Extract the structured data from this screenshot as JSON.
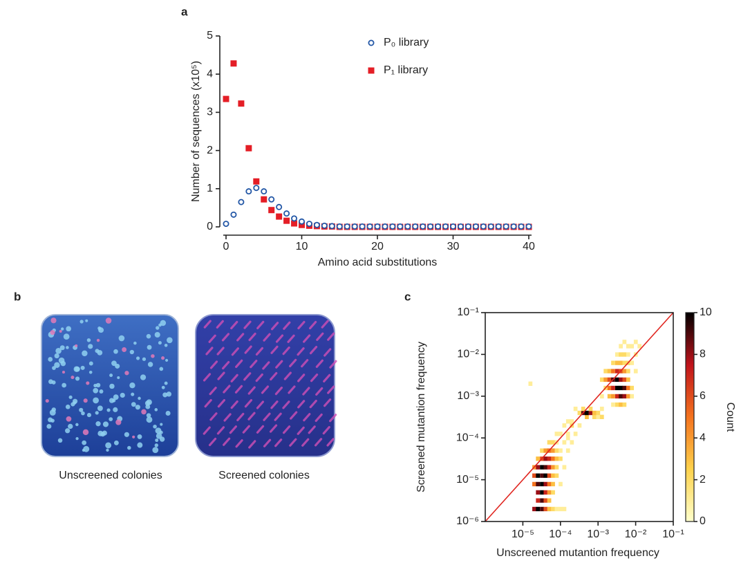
{
  "chart_data": [
    {
      "type": "scatter",
      "panel_label": "a",
      "xlabel": "Amino acid substitutions",
      "ylabel": "Number of sequences (x10⁵)",
      "x": [
        0,
        1,
        2,
        3,
        4,
        5,
        6,
        7,
        8,
        9,
        10,
        11,
        12,
        13,
        14,
        15,
        16,
        17,
        18,
        19,
        20,
        21,
        22,
        23,
        24,
        25,
        26,
        27,
        28,
        29,
        30,
        31,
        32,
        33,
        34,
        35,
        36,
        37,
        38,
        39,
        40
      ],
      "series": [
        {
          "name": "P₀ library",
          "color": "#2357a6",
          "marker": "circle-open",
          "values": [
            0.08,
            0.32,
            0.65,
            0.93,
            1.02,
            0.93,
            0.72,
            0.52,
            0.35,
            0.22,
            0.14,
            0.08,
            0.05,
            0.03,
            0.02,
            0.01,
            0.01,
            0.01,
            0.01,
            0.01,
            0.01,
            0.01,
            0.01,
            0.01,
            0.01,
            0.01,
            0.01,
            0.01,
            0.01,
            0.01,
            0.01,
            0.01,
            0.01,
            0.01,
            0.01,
            0.01,
            0.01,
            0.01,
            0.01,
            0.01,
            0.01
          ]
        },
        {
          "name": "P₁ library",
          "color": "#e41e26",
          "marker": "square",
          "values": [
            3.35,
            4.28,
            3.23,
            2.06,
            1.19,
            0.72,
            0.44,
            0.27,
            0.16,
            0.09,
            0.05,
            0.03,
            0.02,
            0.01,
            0.01,
            0,
            0,
            0,
            0,
            0,
            0,
            0,
            0,
            0,
            0,
            0,
            0,
            0,
            0,
            0,
            0,
            0,
            0,
            0,
            0,
            0,
            0,
            0,
            0,
            0,
            0
          ]
        }
      ],
      "xlim": [
        0,
        40
      ],
      "xticks": [
        0,
        10,
        20,
        30,
        40
      ],
      "ylim": [
        0,
        5
      ],
      "yticks": [
        0,
        1,
        2,
        3,
        4,
        5
      ],
      "legend": "top right"
    },
    {
      "type": "heatmap",
      "panel_label": "c",
      "xlabel": "Unscreened mutantion frequency",
      "ylabel": "Screened mutantion frequency",
      "log_x": true,
      "log_y": true,
      "xlim": [
        1e-06,
        0.1
      ],
      "xticks": [
        {
          "value": 1e-05,
          "label": "10⁻⁵"
        },
        {
          "value": 0.0001,
          "label": "10⁻⁴"
        },
        {
          "value": 0.001,
          "label": "10⁻³"
        },
        {
          "value": 0.01,
          "label": "10⁻²"
        },
        {
          "value": 0.1,
          "label": "10⁻¹"
        }
      ],
      "ylim": [
        1e-06,
        0.1
      ],
      "yticks": [
        {
          "value": 1e-06,
          "label": "10⁻⁶"
        },
        {
          "value": 1e-05,
          "label": "10⁻⁵"
        },
        {
          "value": 0.0001,
          "label": "10⁻⁴"
        },
        {
          "value": 0.001,
          "label": "10⁻³"
        },
        {
          "value": 0.01,
          "label": "10⁻²"
        },
        {
          "value": 0.1,
          "label": "10⁻¹"
        }
      ],
      "diagonal_color": "#e0251f",
      "colorbar_label": "Count",
      "clim": [
        0,
        10
      ],
      "cticks": [
        0,
        2,
        4,
        6,
        8,
        10
      ],
      "colormap": [
        "#ffffcc",
        "#fed24c",
        "#f4731e",
        "#c0131b",
        "#000000"
      ],
      "cells": [
        [
          2e-05,
          2e-06,
          8
        ],
        [
          2.5e-05,
          2e-06,
          10
        ],
        [
          3.2e-05,
          2e-06,
          9
        ],
        [
          4e-05,
          2e-06,
          6
        ],
        [
          5e-05,
          2e-06,
          3
        ],
        [
          6.3e-05,
          2e-06,
          2
        ],
        [
          7.9e-05,
          2e-06,
          1
        ],
        [
          0.0001,
          2e-06,
          1
        ],
        [
          0.000126,
          2e-06,
          1
        ],
        [
          2.5e-05,
          3.2e-06,
          7
        ],
        [
          3.2e-05,
          3.2e-06,
          9
        ],
        [
          4e-05,
          3.2e-06,
          6
        ],
        [
          5e-05,
          3.2e-06,
          3
        ],
        [
          2.5e-05,
          5e-06,
          8
        ],
        [
          3.2e-05,
          5e-06,
          10
        ],
        [
          4e-05,
          5e-06,
          7
        ],
        [
          5e-05,
          5e-06,
          4
        ],
        [
          6.3e-05,
          5e-06,
          2
        ],
        [
          2e-05,
          7.9e-06,
          5
        ],
        [
          2.5e-05,
          7.9e-06,
          9
        ],
        [
          3.2e-05,
          7.9e-06,
          10
        ],
        [
          4e-05,
          7.9e-06,
          8
        ],
        [
          5e-05,
          7.9e-06,
          5
        ],
        [
          6.3e-05,
          7.9e-06,
          3
        ],
        [
          0.0001,
          7.9e-06,
          1
        ],
        [
          2e-05,
          1.26e-05,
          6
        ],
        [
          2.5e-05,
          1.26e-05,
          10
        ],
        [
          3.2e-05,
          1.26e-05,
          9
        ],
        [
          4e-05,
          1.26e-05,
          10
        ],
        [
          5e-05,
          1.26e-05,
          6
        ],
        [
          6.3e-05,
          1.26e-05,
          3
        ],
        [
          7.9e-05,
          1.26e-05,
          2
        ],
        [
          2e-05,
          2e-05,
          4
        ],
        [
          2.5e-05,
          2e-05,
          8
        ],
        [
          3.2e-05,
          2e-05,
          10
        ],
        [
          4e-05,
          2e-05,
          9
        ],
        [
          5e-05,
          2e-05,
          7
        ],
        [
          6.3e-05,
          2e-05,
          4
        ],
        [
          7.9e-05,
          2e-05,
          2
        ],
        [
          0.000126,
          2e-05,
          1
        ],
        [
          2.5e-05,
          3.2e-05,
          3
        ],
        [
          3.2e-05,
          3.2e-05,
          6
        ],
        [
          4e-05,
          3.2e-05,
          8
        ],
        [
          5e-05,
          3.2e-05,
          7
        ],
        [
          6.3e-05,
          3.2e-05,
          5
        ],
        [
          7.9e-05,
          3.2e-05,
          3
        ],
        [
          0.0001,
          3.2e-05,
          2
        ],
        [
          3.2e-05,
          5e-05,
          2
        ],
        [
          4e-05,
          5e-05,
          4
        ],
        [
          5e-05,
          5e-05,
          5
        ],
        [
          6.3e-05,
          5e-05,
          4
        ],
        [
          7.9e-05,
          5e-05,
          2
        ],
        [
          0.0001,
          5e-05,
          1
        ],
        [
          0.000158,
          5e-05,
          1
        ],
        [
          5e-05,
          7.9e-05,
          2
        ],
        [
          6.3e-05,
          7.9e-05,
          2
        ],
        [
          7.9e-05,
          7.9e-05,
          1
        ],
        [
          0.000126,
          7.9e-05,
          1
        ],
        [
          0.0002,
          7.9e-05,
          1
        ],
        [
          0.000158,
          0.0001,
          1
        ],
        [
          7.9e-05,
          0.000126,
          1
        ],
        [
          0.0001,
          0.000126,
          1
        ],
        [
          0.000158,
          0.000126,
          1
        ],
        [
          0.00025,
          0.000126,
          1
        ],
        [
          0.000126,
          0.0002,
          1
        ],
        [
          0.0002,
          0.0002,
          2
        ],
        [
          0.00032,
          0.0002,
          1
        ],
        [
          0.000158,
          0.00025,
          1
        ],
        [
          0.0002,
          0.00025,
          1
        ],
        [
          0.0005,
          0.00032,
          3
        ],
        [
          0.00079,
          0.00032,
          2
        ],
        [
          0.001,
          0.00032,
          1
        ],
        [
          0.00126,
          0.00032,
          2
        ],
        [
          0.00032,
          0.0004,
          2
        ],
        [
          0.0004,
          0.0004,
          9
        ],
        [
          0.0005,
          0.0004,
          10
        ],
        [
          0.00063,
          0.0004,
          8
        ],
        [
          0.00079,
          0.0004,
          3
        ],
        [
          0.001,
          0.0004,
          2
        ],
        [
          0.00025,
          0.0005,
          1
        ],
        [
          0.0004,
          0.0005,
          2
        ],
        [
          0.00063,
          0.0005,
          2
        ],
        [
          0.00126,
          0.0005,
          1
        ],
        [
          0.0025,
          0.00063,
          1
        ],
        [
          0.0032,
          0.00063,
          2
        ],
        [
          0.004,
          0.00063,
          3
        ],
        [
          0.005,
          0.00063,
          2
        ],
        [
          0.00126,
          0.001,
          1
        ],
        [
          0.002,
          0.001,
          3
        ],
        [
          0.0025,
          0.001,
          4
        ],
        [
          0.0032,
          0.001,
          7
        ],
        [
          0.004,
          0.001,
          9
        ],
        [
          0.005,
          0.001,
          8
        ],
        [
          0.0063,
          0.001,
          4
        ],
        [
          0.0079,
          0.001,
          1
        ],
        [
          0.00158,
          0.00158,
          2
        ],
        [
          0.002,
          0.00158,
          5
        ],
        [
          0.0025,
          0.00158,
          7
        ],
        [
          0.0032,
          0.00158,
          10
        ],
        [
          0.004,
          0.00158,
          10
        ],
        [
          0.005,
          0.00158,
          9
        ],
        [
          0.0063,
          0.00158,
          5
        ],
        [
          0.0079,
          0.00158,
          2
        ],
        [
          1.58e-05,
          0.002,
          1
        ],
        [
          0.00126,
          0.0025,
          2
        ],
        [
          0.00158,
          0.0025,
          4
        ],
        [
          0.002,
          0.0025,
          6
        ],
        [
          0.0025,
          0.0025,
          9
        ],
        [
          0.0032,
          0.0025,
          10
        ],
        [
          0.004,
          0.0025,
          8
        ],
        [
          0.005,
          0.0025,
          6
        ],
        [
          0.0063,
          0.0025,
          3
        ],
        [
          0.00158,
          0.004,
          2
        ],
        [
          0.002,
          0.004,
          3
        ],
        [
          0.0025,
          0.004,
          5
        ],
        [
          0.0032,
          0.004,
          7
        ],
        [
          0.004,
          0.004,
          6
        ],
        [
          0.005,
          0.004,
          4
        ],
        [
          0.0063,
          0.004,
          2
        ],
        [
          0.01,
          0.004,
          1
        ],
        [
          0.0025,
          0.0063,
          2
        ],
        [
          0.0032,
          0.0063,
          3
        ],
        [
          0.004,
          0.0063,
          3
        ],
        [
          0.005,
          0.0063,
          2
        ],
        [
          0.0063,
          0.0063,
          2
        ],
        [
          0.0079,
          0.0063,
          1
        ],
        [
          0.0032,
          0.01,
          1
        ],
        [
          0.004,
          0.01,
          2
        ],
        [
          0.005,
          0.01,
          2
        ],
        [
          0.0063,
          0.01,
          1
        ],
        [
          0.01,
          0.01,
          1
        ],
        [
          0.004,
          0.0158,
          1
        ],
        [
          0.0063,
          0.0158,
          1
        ],
        [
          0.0079,
          0.0158,
          1
        ],
        [
          0.0126,
          0.0158,
          1
        ],
        [
          0.005,
          0.02,
          1
        ],
        [
          0.01,
          0.02,
          1
        ]
      ]
    }
  ],
  "photos": {
    "panel_label": "b",
    "captions": [
      "Unscreened colonies",
      "Screened colonies"
    ]
  }
}
